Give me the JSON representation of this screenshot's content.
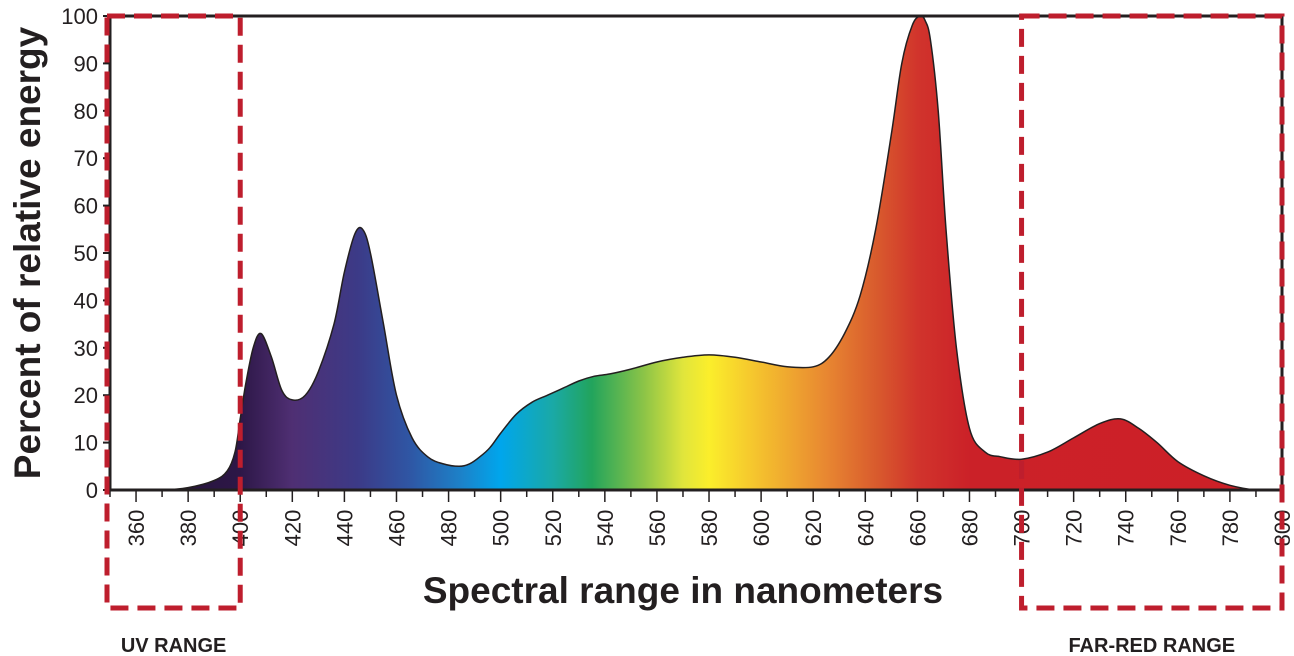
{
  "chart_data": {
    "type": "area",
    "xlabel": "Spectral range in nanometers",
    "ylabel": "Percent of relative energy",
    "xlim": [
      350,
      800
    ],
    "ylim": [
      0,
      100
    ],
    "x_ticks": [
      360,
      380,
      400,
      420,
      440,
      460,
      480,
      500,
      520,
      540,
      560,
      580,
      600,
      620,
      640,
      660,
      680,
      700,
      720,
      740,
      760,
      780,
      800
    ],
    "y_ticks": [
      0,
      10,
      20,
      30,
      40,
      50,
      60,
      70,
      80,
      90,
      100
    ],
    "grid": false,
    "series": [
      {
        "x": [
          350,
          370,
          380,
          390,
          395,
          398,
          400,
          402,
          405,
          408,
          412,
          416,
          420,
          425,
          430,
          436,
          440,
          444,
          447,
          450,
          455,
          460,
          466,
          472,
          478,
          484,
          488,
          492,
          496,
          500,
          506,
          512,
          518,
          524,
          530,
          536,
          542,
          550,
          560,
          570,
          580,
          590,
          600,
          610,
          620,
          626,
          632,
          638,
          644,
          650,
          654,
          658,
          661,
          663,
          665,
          668,
          671,
          675,
          680,
          686,
          692,
          700,
          710,
          720,
          730,
          738,
          745,
          752,
          760,
          770,
          780,
          790,
          800
        ],
        "y": [
          0,
          0,
          0.5,
          2,
          4,
          8,
          15,
          22,
          30,
          33,
          28,
          21,
          19,
          20,
          25,
          35,
          46,
          54,
          55,
          50,
          35,
          20,
          11,
          7,
          5.5,
          5,
          5.5,
          7,
          9,
          12,
          16,
          18.5,
          20,
          21.5,
          23,
          24,
          24.5,
          25.5,
          27,
          28,
          28.5,
          28,
          27,
          26,
          26,
          28,
          33,
          41,
          55,
          75,
          90,
          98,
          100,
          99,
          95,
          80,
          55,
          30,
          13,
          8,
          7,
          6.5,
          8,
          11,
          14,
          15,
          13,
          10,
          6,
          3,
          1,
          0,
          0
        ]
      }
    ],
    "color_stops": [
      {
        "x": 360,
        "color": "#231336"
      },
      {
        "x": 400,
        "color": "#2d1747"
      },
      {
        "x": 420,
        "color": "#4f2f73"
      },
      {
        "x": 445,
        "color": "#3c3a87"
      },
      {
        "x": 465,
        "color": "#2f56a4"
      },
      {
        "x": 485,
        "color": "#1c82c9"
      },
      {
        "x": 500,
        "color": "#00a6ec"
      },
      {
        "x": 520,
        "color": "#1aa9a6"
      },
      {
        "x": 535,
        "color": "#22a45c"
      },
      {
        "x": 555,
        "color": "#8cc447"
      },
      {
        "x": 570,
        "color": "#e0e53c"
      },
      {
        "x": 580,
        "color": "#fbee2b"
      },
      {
        "x": 600,
        "color": "#f4bf2e"
      },
      {
        "x": 625,
        "color": "#e88731"
      },
      {
        "x": 645,
        "color": "#d8592d"
      },
      {
        "x": 660,
        "color": "#d1342c"
      },
      {
        "x": 680,
        "color": "#cb2128"
      },
      {
        "x": 800,
        "color": "#cd2027"
      }
    ],
    "annotations": [
      {
        "label": "UV RANGE",
        "x_range": [
          350,
          400
        ]
      },
      {
        "label": "FAR-RED RANGE",
        "x_range": [
          700,
          800
        ]
      }
    ],
    "colors": {
      "axis": "#231f20",
      "highlight_box": "#be1e2d"
    }
  }
}
